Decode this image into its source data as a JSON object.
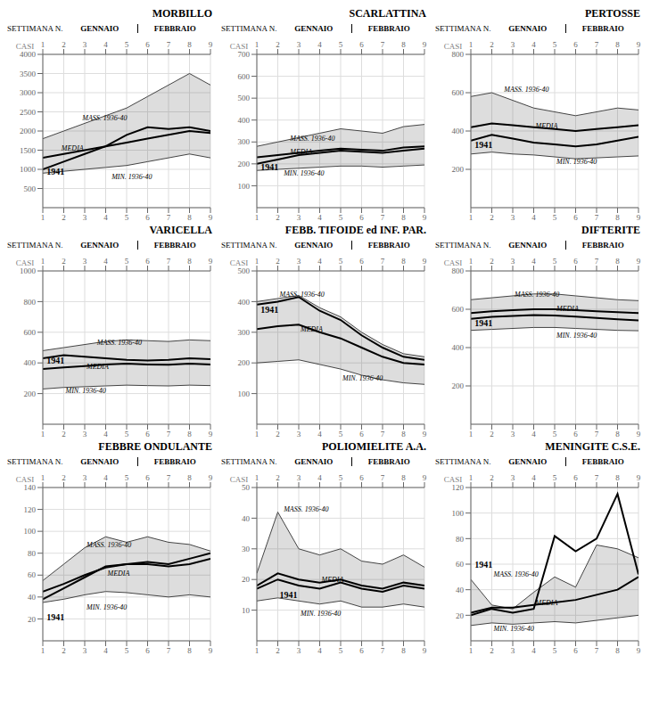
{
  "chart_data": [
    {
      "type": "line",
      "title": "MORBILLO",
      "xlabel": "SETTIMANA N.",
      "ylabel": "CASI",
      "annotations": [
        "GENNAIO",
        "FEBBRAIO"
      ],
      "x": [
        1,
        2,
        3,
        4,
        5,
        6,
        7,
        8,
        9
      ],
      "xlim": [
        1,
        9
      ],
      "xticks": [
        1,
        2,
        3,
        4,
        5,
        6,
        7,
        8,
        9
      ],
      "ylim": [
        0,
        4000
      ],
      "yticks": [
        500,
        1000,
        1500,
        2000,
        2500,
        3000,
        3500,
        4000
      ],
      "grid": true,
      "series": [
        {
          "name": "MASS. 1936-40",
          "type": "band",
          "color": "#444444",
          "values": [
            1800,
            2000,
            2200,
            2400,
            2600,
            2900,
            3200,
            3500,
            3200
          ],
          "label_x": 2.8,
          "label_y": 2350
        },
        {
          "name": "MEDIA",
          "type": "line",
          "color": "#000000",
          "values": [
            1300,
            1400,
            1500,
            1600,
            1700,
            1800,
            1900,
            2000,
            1950
          ],
          "label_x": 1.8,
          "label_y": 1560
        },
        {
          "name": "MIN. 1936-40",
          "type": "band",
          "color": "#444444",
          "values": [
            900,
            950,
            1000,
            1050,
            1100,
            1200,
            1300,
            1400,
            1300
          ],
          "label_x": 4.2,
          "label_y": 820
        },
        {
          "name": "1941",
          "type": "line",
          "color": "#000000",
          "values": [
            1000,
            1200,
            1400,
            1600,
            1900,
            2100,
            2050,
            2100,
            2000
          ],
          "label_x": 1.1,
          "label_y": 950
        }
      ]
    },
    {
      "type": "line",
      "title": "SCARLATTINA",
      "xlabel": "SETTIMANA N.",
      "ylabel": "CASI",
      "annotations": [
        "GENNAIO",
        "FEBBRAIO"
      ],
      "x": [
        1,
        2,
        3,
        4,
        5,
        6,
        7,
        8,
        9
      ],
      "xlim": [
        1,
        9
      ],
      "xticks": [
        1,
        2,
        3,
        4,
        5,
        6,
        7,
        8,
        9
      ],
      "ylim": [
        0,
        700
      ],
      "yticks": [
        100,
        200,
        300,
        400,
        500,
        600,
        700
      ],
      "grid": true,
      "series": [
        {
          "name": "MASS. 1936-40",
          "type": "band",
          "color": "#444444",
          "values": [
            280,
            300,
            320,
            340,
            360,
            350,
            340,
            370,
            380
          ],
          "label_x": 2.5,
          "label_y": 315
        },
        {
          "name": "MEDIA",
          "type": "line",
          "color": "#000000",
          "values": [
            230,
            240,
            250,
            260,
            270,
            265,
            260,
            275,
            280
          ],
          "label_x": 2.5,
          "label_y": 255
        },
        {
          "name": "MIN. 1936-40",
          "type": "band",
          "color": "#444444",
          "values": [
            170,
            175,
            180,
            185,
            190,
            190,
            185,
            190,
            195
          ],
          "label_x": 2.2,
          "label_y": 160
        },
        {
          "name": "1941",
          "type": "line",
          "color": "#000000",
          "values": [
            200,
            220,
            240,
            250,
            260,
            255,
            250,
            260,
            270
          ],
          "label_x": 1.1,
          "label_y": 185
        }
      ]
    },
    {
      "type": "line",
      "title": "PERTOSSE",
      "xlabel": "SETTIMANA N.",
      "ylabel": "CASI",
      "annotations": [
        "GENNAIO",
        "FEBBRAIO"
      ],
      "x": [
        1,
        2,
        3,
        4,
        5,
        6,
        7,
        8,
        9
      ],
      "xlim": [
        1,
        9
      ],
      "xticks": [
        1,
        2,
        3,
        4,
        5,
        6,
        7,
        8,
        9
      ],
      "ylim": [
        0,
        800
      ],
      "yticks": [
        200,
        400,
        600,
        800
      ],
      "grid": true,
      "series": [
        {
          "name": "MASS. 1936-40",
          "type": "band",
          "color": "#444444",
          "values": [
            580,
            600,
            560,
            520,
            500,
            480,
            500,
            520,
            510
          ],
          "label_x": 2.5,
          "label_y": 620
        },
        {
          "name": "MEDIA",
          "type": "line",
          "color": "#000000",
          "values": [
            420,
            440,
            430,
            420,
            410,
            400,
            410,
            420,
            430
          ],
          "label_x": 4.0,
          "label_y": 425
        },
        {
          "name": "MIN. 1936-40",
          "type": "band",
          "color": "#444444",
          "values": [
            280,
            290,
            280,
            275,
            265,
            255,
            260,
            265,
            270
          ],
          "label_x": 5.0,
          "label_y": 240
        },
        {
          "name": "1941",
          "type": "line",
          "color": "#000000",
          "values": [
            350,
            380,
            360,
            340,
            330,
            320,
            330,
            350,
            370
          ],
          "label_x": 1.1,
          "label_y": 330
        }
      ]
    },
    {
      "type": "line",
      "title": "VARICELLA",
      "xlabel": "SETTIMANA N.",
      "ylabel": "CASI",
      "annotations": [
        "GENNAIO",
        "FEBBRAIO"
      ],
      "x": [
        1,
        2,
        3,
        4,
        5,
        6,
        7,
        8,
        9
      ],
      "xlim": [
        1,
        9
      ],
      "xticks": [
        1,
        2,
        3,
        4,
        5,
        6,
        7,
        8,
        9
      ],
      "ylim": [
        0,
        1000
      ],
      "yticks": [
        200,
        400,
        600,
        800,
        1000
      ],
      "grid": true,
      "series": [
        {
          "name": "MASS. 1936-40",
          "type": "band",
          "color": "#444444",
          "values": [
            480,
            500,
            520,
            540,
            550,
            545,
            540,
            550,
            545
          ],
          "label_x": 3.5,
          "label_y": 535
        },
        {
          "name": "MEDIA",
          "type": "line",
          "color": "#000000",
          "values": [
            360,
            370,
            380,
            390,
            395,
            390,
            388,
            395,
            390
          ],
          "label_x": 3.0,
          "label_y": 378
        },
        {
          "name": "MIN. 1936-40",
          "type": "band",
          "color": "#444444",
          "values": [
            230,
            240,
            245,
            250,
            255,
            252,
            250,
            255,
            252
          ],
          "label_x": 2.0,
          "label_y": 218
        },
        {
          "name": "1941",
          "type": "line",
          "color": "#000000",
          "values": [
            430,
            450,
            440,
            430,
            420,
            415,
            420,
            430,
            425
          ],
          "label_x": 1.1,
          "label_y": 415
        }
      ]
    },
    {
      "type": "line",
      "title": "FEBB. TIFOIDE ed INF. PAR.",
      "xlabel": "SETTIMANA N.",
      "ylabel": "CASI",
      "annotations": [
        "GENNAIO",
        "FEBBRAIO"
      ],
      "x": [
        1,
        2,
        3,
        4,
        5,
        6,
        7,
        8,
        9
      ],
      "xlim": [
        1,
        9
      ],
      "xticks": [
        1,
        2,
        3,
        4,
        5,
        6,
        7,
        8,
        9
      ],
      "ylim": [
        0,
        500
      ],
      "yticks": [
        100,
        200,
        300,
        400,
        500
      ],
      "grid": true,
      "series": [
        {
          "name": "MASS. 1936-40",
          "type": "band",
          "color": "#444444",
          "values": [
            400,
            410,
            420,
            380,
            350,
            300,
            260,
            230,
            220
          ],
          "label_x": 2.0,
          "label_y": 425
        },
        {
          "name": "MEDIA",
          "type": "line",
          "color": "#000000",
          "values": [
            310,
            320,
            325,
            300,
            280,
            250,
            220,
            200,
            195
          ],
          "label_x": 3.0,
          "label_y": 310
        },
        {
          "name": "MIN. 1936-40",
          "type": "band",
          "color": "#444444",
          "values": [
            200,
            205,
            210,
            195,
            180,
            160,
            145,
            135,
            130
          ],
          "label_x": 5.0,
          "label_y": 150
        },
        {
          "name": "1941",
          "type": "line",
          "color": "#000000",
          "values": [
            390,
            400,
            415,
            370,
            340,
            290,
            250,
            220,
            210
          ],
          "label_x": 1.1,
          "label_y": 375
        }
      ]
    },
    {
      "type": "line",
      "title": "DIFTERITE",
      "xlabel": "SETTIMANA N.",
      "ylabel": "CASI",
      "annotations": [
        "GENNAIO",
        "FEBBRAIO"
      ],
      "x": [
        1,
        2,
        3,
        4,
        5,
        6,
        7,
        8,
        9
      ],
      "xlim": [
        1,
        9
      ],
      "xticks": [
        1,
        2,
        3,
        4,
        5,
        6,
        7,
        8,
        9
      ],
      "ylim": [
        0,
        800
      ],
      "yticks": [
        200,
        400,
        600,
        800
      ],
      "grid": true,
      "series": [
        {
          "name": "MASS. 1936-40",
          "type": "band",
          "color": "#444444",
          "values": [
            650,
            660,
            670,
            680,
            680,
            670,
            660,
            650,
            645
          ],
          "label_x": 3.0,
          "label_y": 680
        },
        {
          "name": "MEDIA",
          "type": "line",
          "color": "#000000",
          "values": [
            580,
            590,
            595,
            600,
            600,
            595,
            590,
            585,
            580
          ],
          "label_x": 5.0,
          "label_y": 605
        },
        {
          "name": "MIN. 1936-40",
          "type": "band",
          "color": "#444444",
          "values": [
            490,
            495,
            500,
            505,
            505,
            500,
            495,
            490,
            488
          ],
          "label_x": 5.0,
          "label_y": 465
        },
        {
          "name": "1941",
          "type": "line",
          "color": "#000000",
          "values": [
            550,
            560,
            565,
            570,
            568,
            562,
            555,
            548,
            542
          ],
          "label_x": 1.1,
          "label_y": 530
        }
      ]
    },
    {
      "type": "line",
      "title": "FEBBRE ONDULANTE",
      "xlabel": "SETTIMANA N.",
      "ylabel": "CASI",
      "annotations": [
        "GENNAIO",
        "FEBBRAIO"
      ],
      "x": [
        1,
        2,
        3,
        4,
        5,
        6,
        7,
        8,
        9
      ],
      "xlim": [
        1,
        9
      ],
      "xticks": [
        1,
        2,
        3,
        4,
        5,
        6,
        7,
        8,
        9
      ],
      "ylim": [
        0,
        140
      ],
      "yticks": [
        20,
        40,
        60,
        80,
        100,
        120,
        140
      ],
      "grid": true,
      "series": [
        {
          "name": "MASS. 1936-40",
          "type": "band",
          "color": "#444444",
          "values": [
            55,
            70,
            85,
            95,
            90,
            95,
            90,
            88,
            82
          ],
          "label_x": 3.0,
          "label_y": 88
        },
        {
          "name": "MEDIA",
          "type": "line",
          "color": "#000000",
          "values": [
            45,
            52,
            60,
            67,
            70,
            70,
            68,
            70,
            75
          ],
          "label_x": 4.0,
          "label_y": 62
        },
        {
          "name": "MIN. 1936-40",
          "type": "band",
          "color": "#444444",
          "values": [
            35,
            38,
            42,
            45,
            44,
            42,
            40,
            42,
            40
          ],
          "label_x": 3.0,
          "label_y": 31
        },
        {
          "name": "1941",
          "type": "line",
          "color": "#000000",
          "values": [
            38,
            48,
            58,
            68,
            70,
            72,
            70,
            75,
            80
          ],
          "label_x": 1.1,
          "label_y": 22
        }
      ]
    },
    {
      "type": "line",
      "title": "POLIOMIELITE  A.A.",
      "xlabel": "SETTIMANA N.",
      "ylabel": "CASI",
      "annotations": [
        "GENNAIO",
        "FEBBRAIO"
      ],
      "x": [
        1,
        2,
        3,
        4,
        5,
        6,
        7,
        8,
        9
      ],
      "xlim": [
        1,
        9
      ],
      "xticks": [
        1,
        2,
        3,
        4,
        5,
        6,
        7,
        8,
        9
      ],
      "ylim": [
        0,
        50
      ],
      "yticks": [
        10,
        20,
        30,
        40,
        50
      ],
      "grid": true,
      "series": [
        {
          "name": "MASS. 1936-40",
          "type": "band",
          "color": "#444444",
          "values": [
            22,
            42,
            30,
            28,
            30,
            26,
            25,
            28,
            24
          ],
          "label_x": 2.2,
          "label_y": 43
        },
        {
          "name": "MEDIA",
          "type": "line",
          "color": "#000000",
          "values": [
            18,
            22,
            20,
            19,
            20,
            18,
            17,
            19,
            18
          ],
          "label_x": 4.0,
          "label_y": 20
        },
        {
          "name": "MIN. 1936-40",
          "type": "band",
          "color": "#444444",
          "values": [
            13,
            14,
            13,
            12,
            13,
            11,
            11,
            12,
            11
          ],
          "label_x": 3.0,
          "label_y": 9
        },
        {
          "name": "1941",
          "type": "line",
          "color": "#000000",
          "values": [
            17,
            20,
            18,
            17,
            19,
            17,
            16,
            18,
            17
          ],
          "label_x": 2.0,
          "label_y": 15
        }
      ]
    },
    {
      "type": "line",
      "title": "MENINGITE  C.S.E.",
      "xlabel": "SETTIMANA N.",
      "ylabel": "CASI",
      "annotations": [
        "GENNAIO",
        "FEBBRAIO"
      ],
      "x": [
        1,
        2,
        3,
        4,
        5,
        6,
        7,
        8,
        9
      ],
      "xlim": [
        1,
        9
      ],
      "xticks": [
        1,
        2,
        3,
        4,
        5,
        6,
        7,
        8,
        9
      ],
      "ylim": [
        0,
        120
      ],
      "yticks": [
        20,
        40,
        60,
        80,
        100,
        120
      ],
      "grid": true,
      "series": [
        {
          "name": "MASS. 1936-40",
          "type": "band",
          "color": "#444444",
          "values": [
            48,
            28,
            25,
            38,
            50,
            42,
            75,
            72,
            65
          ],
          "label_x": 2.0,
          "label_y": 52
        },
        {
          "name": "MEDIA",
          "type": "line",
          "color": "#000000",
          "values": [
            22,
            26,
            26,
            28,
            30,
            32,
            36,
            40,
            50
          ],
          "label_x": 4.0,
          "label_y": 30
        },
        {
          "name": "MIN. 1936-40",
          "type": "band",
          "color": "#444444",
          "values": [
            12,
            14,
            13,
            14,
            15,
            14,
            16,
            18,
            20
          ],
          "label_x": 2.0,
          "label_y": 10
        },
        {
          "name": "1941",
          "type": "line",
          "color": "#000000",
          "values": [
            20,
            25,
            22,
            25,
            82,
            70,
            80,
            115,
            52
          ],
          "label_x": 1.1,
          "label_y": 60
        }
      ]
    }
  ]
}
